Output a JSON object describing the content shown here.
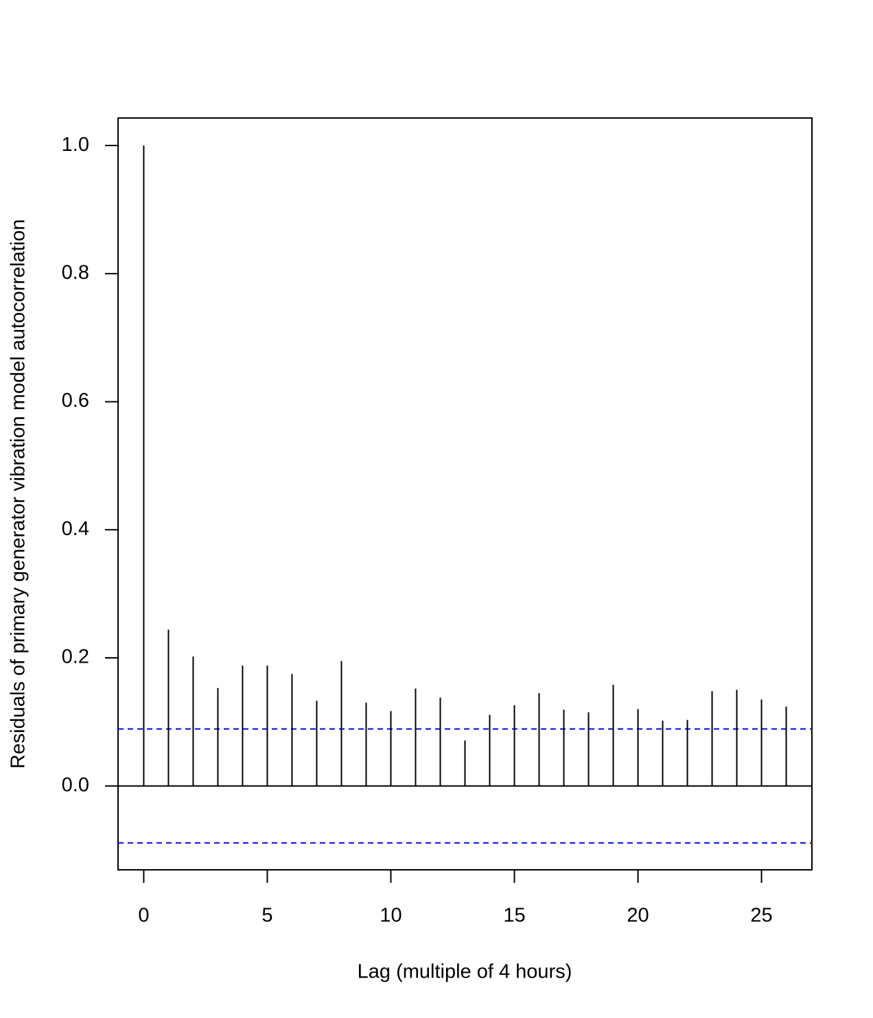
{
  "chart_data": {
    "type": "bar",
    "x_label": "Lag (multiple of 4 hours)",
    "y_label": "Residuals of primary generator vibration model autocorrelation",
    "x": [
      0,
      1,
      2,
      3,
      4,
      5,
      6,
      7,
      8,
      9,
      10,
      11,
      12,
      13,
      14,
      15,
      16,
      17,
      18,
      19,
      20,
      21,
      22,
      23,
      24,
      25,
      26
    ],
    "values": [
      1.0,
      0.244,
      0.202,
      0.153,
      0.188,
      0.188,
      0.175,
      0.133,
      0.195,
      0.13,
      0.117,
      0.152,
      0.138,
      0.071,
      0.111,
      0.126,
      0.145,
      0.119,
      0.115,
      0.158,
      0.12,
      0.102,
      0.103,
      0.148,
      0.15,
      0.135,
      0.124
    ],
    "color": "#000000",
    "confidence_bounds": [
      0.089,
      -0.089
    ],
    "confidence_color": "#0000ff",
    "xlim": [
      -1.04,
      27.04
    ],
    "ylim": [
      -0.131,
      1.043
    ],
    "xticks": [
      0,
      5,
      10,
      15,
      20,
      25
    ],
    "yticks": [
      {
        "value": 0,
        "label": "0.0"
      },
      0.2,
      0.4,
      0.6,
      0.8,
      {
        "value": 1,
        "label": "1.0"
      }
    ]
  }
}
